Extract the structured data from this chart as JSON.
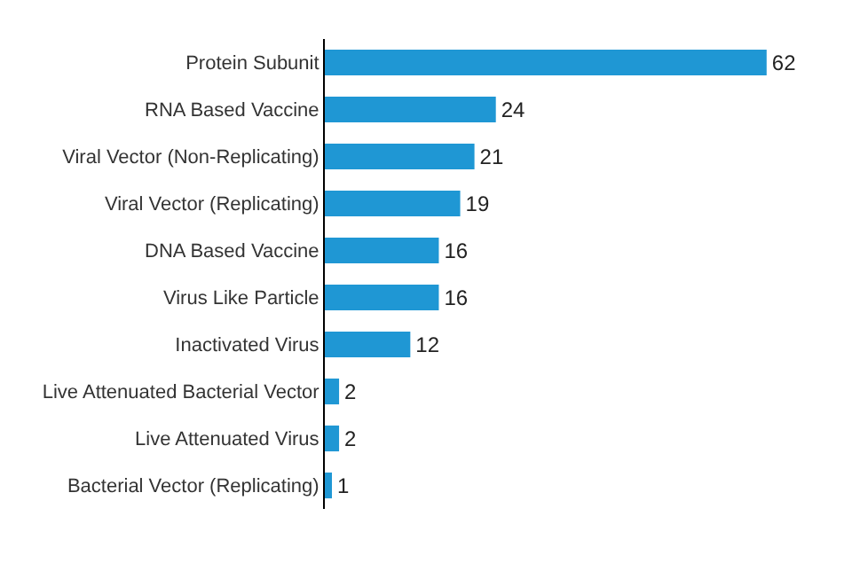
{
  "chart_data": {
    "type": "bar",
    "orientation": "horizontal",
    "categories": [
      "Protein Subunit",
      "RNA Based Vaccine",
      "Viral Vector (Non-Replicating)",
      "Viral Vector (Replicating)",
      "DNA Based Vaccine",
      "Virus Like Particle",
      "Inactivated Virus",
      "Live Attenuated Bacterial Vector",
      "Live Attenuated Virus",
      "Bacterial Vector (Replicating)"
    ],
    "values": [
      62,
      24,
      21,
      19,
      16,
      16,
      12,
      2,
      2,
      1
    ],
    "color": "#1f97d4",
    "data_labels": true
  }
}
